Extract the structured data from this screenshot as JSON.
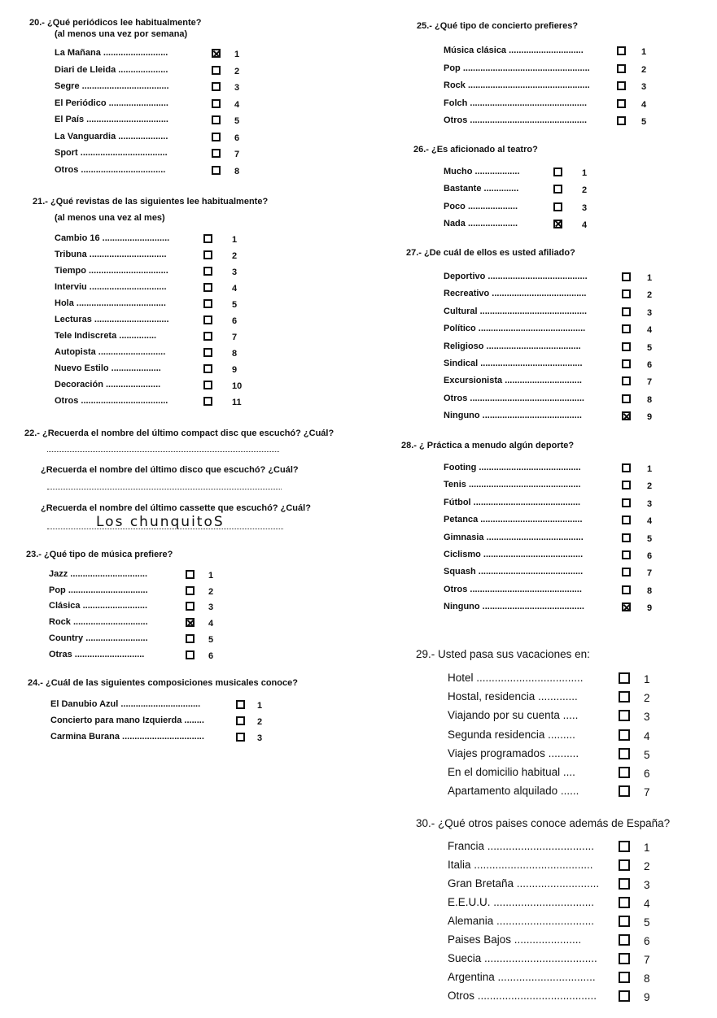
{
  "questions": [
    {
      "id": "q20",
      "title": "20.- ¿Qué periódicos lee habitualmente?",
      "subtitle": "(al menos una vez por semana)",
      "options": [
        {
          "label": "La Mañana ..........................",
          "num": "1",
          "checked": true
        },
        {
          "label": "Diari de Lleida ....................",
          "num": "2"
        },
        {
          "label": "Segre ...................................",
          "num": "3"
        },
        {
          "label": "El Periódico ........................",
          "num": "4"
        },
        {
          "label": "El País .................................",
          "num": "5"
        },
        {
          "label": "La Vanguardia ....................",
          "num": "6"
        },
        {
          "label": "Sport ...................................",
          "num": "7"
        },
        {
          "label": "Otros ..................................",
          "num": "8"
        }
      ]
    },
    {
      "id": "q21",
      "title": "21.- ¿Qué revistas de las siguientes lee habitualmente?",
      "subtitle": "(al menos una vez al mes)",
      "options": [
        {
          "label": "Cambio 16 ...........................",
          "num": "1"
        },
        {
          "label": "Tribuna ...............................",
          "num": "2"
        },
        {
          "label": "Tiempo ................................",
          "num": "3"
        },
        {
          "label": "Interviu ...............................",
          "num": "4"
        },
        {
          "label": "Hola ....................................",
          "num": "5"
        },
        {
          "label": "Lecturas ..............................",
          "num": "6"
        },
        {
          "label": "Tele Indiscreta ...............",
          "num": "7"
        },
        {
          "label": "Autopista ...........................",
          "num": "8"
        },
        {
          "label": "Nuevo Estilo ....................",
          "num": "9"
        },
        {
          "label": "Decoración ......................",
          "num": "10"
        },
        {
          "label": "Otros ...................................",
          "num": "11"
        }
      ]
    },
    {
      "id": "q23",
      "title": "23.- ¿Qué tipo de música prefiere?",
      "options": [
        {
          "label": "Jazz ...............................",
          "num": "1"
        },
        {
          "label": "Pop ................................",
          "num": "2"
        },
        {
          "label": "Clásica ..........................",
          "num": "3"
        },
        {
          "label": "Rock ..............................",
          "num": "4",
          "checked": true
        },
        {
          "label": "Country .........................",
          "num": "5"
        },
        {
          "label": "Otras ............................",
          "num": "6"
        }
      ]
    },
    {
      "id": "q24",
      "title": "24.- ¿Cuál de las siguientes composiciones musicales conoce?",
      "options": [
        {
          "label": "El Danubio Azul ................................",
          "num": "1"
        },
        {
          "label": "Concierto para mano Izquierda ........",
          "num": "2"
        },
        {
          "label": "Carmina Burana .................................",
          "num": "3"
        }
      ]
    },
    {
      "id": "q25",
      "title": "25.- ¿Qué tipo de concierto prefieres?",
      "options": [
        {
          "label": "Música clásica ..............................",
          "num": "1"
        },
        {
          "label": "Pop ...................................................",
          "num": "2"
        },
        {
          "label": "Rock .................................................",
          "num": "3"
        },
        {
          "label": "Folch ...............................................",
          "num": "4"
        },
        {
          "label": "Otros ...............................................",
          "num": "5"
        }
      ]
    },
    {
      "id": "q26",
      "title": "26.- ¿Es aficionado al teatro?",
      "options": [
        {
          "label": "Mucho ..................",
          "num": "1"
        },
        {
          "label": "Bastante ..............",
          "num": "2"
        },
        {
          "label": "Poco ....................",
          "num": "3"
        },
        {
          "label": "Nada ....................",
          "num": "4",
          "checked": true
        }
      ]
    },
    {
      "id": "q27",
      "title": "27.- ¿De cuál de ellos es usted afiliado?",
      "options": [
        {
          "label": "Deportivo ........................................",
          "num": "1"
        },
        {
          "label": "Recreativo ......................................",
          "num": "2"
        },
        {
          "label": "Cultural ...........................................",
          "num": "3"
        },
        {
          "label": "Político ...........................................",
          "num": "4"
        },
        {
          "label": "Religioso ......................................",
          "num": "5"
        },
        {
          "label": "Sindical .........................................",
          "num": "6"
        },
        {
          "label": "Excursionista ...............................",
          "num": "7"
        },
        {
          "label": "Otros ..............................................",
          "num": "8"
        },
        {
          "label": "Ninguno ........................................",
          "num": "9",
          "checked": true
        }
      ]
    },
    {
      "id": "q28",
      "title": "28.- ¿ Práctica a menudo algún deporte?",
      "options": [
        {
          "label": "Footing .........................................",
          "num": "1"
        },
        {
          "label": "Tenis .............................................",
          "num": "2"
        },
        {
          "label": "Fútbol ...........................................",
          "num": "3"
        },
        {
          "label": "Petanca .........................................",
          "num": "4"
        },
        {
          "label": "Gimnasia .......................................",
          "num": "5"
        },
        {
          "label": "Ciclismo ........................................",
          "num": "6"
        },
        {
          "label": "Squash ..........................................",
          "num": "7"
        },
        {
          "label": "Otros .............................................",
          "num": "8"
        },
        {
          "label": "Ninguno .........................................",
          "num": "9",
          "checked": true
        }
      ]
    },
    {
      "id": "q29",
      "title": "29.- Usted pasa sus vacaciones en:",
      "options": [
        {
          "label": "Hotel ...................................",
          "num": "1"
        },
        {
          "label": "Hostal, residencia .............",
          "num": "2"
        },
        {
          "label": "Viajando por su cuenta .....",
          "num": "3"
        },
        {
          "label": "Segunda residencia .........",
          "num": "4"
        },
        {
          "label": "Viajes programados ..........",
          "num": "5"
        },
        {
          "label": "En el domicilio habitual ....",
          "num": "6"
        },
        {
          "label": "Apartamento alquilado ......",
          "num": "7"
        }
      ]
    },
    {
      "id": "q30",
      "title": "30.- ¿Qué otros paises conoce además de España?",
      "options": [
        {
          "label": "Francia ...................................",
          "num": "1"
        },
        {
          "label": "Italia .......................................",
          "num": "2"
        },
        {
          "label": "Gran Bretaña ...........................",
          "num": "3"
        },
        {
          "label": "E.E.U.U. .................................",
          "num": "4"
        },
        {
          "label": "Alemania ................................",
          "num": "5"
        },
        {
          "label": "Paises Bajos ......................",
          "num": "6"
        },
        {
          "label": "Suecia .....................................",
          "num": "7"
        },
        {
          "label": "Argentina ................................",
          "num": "8"
        },
        {
          "label": "Otros .......................................",
          "num": "9"
        }
      ]
    }
  ],
  "q22": {
    "title": "22.- ¿Recuerda el nombre del último compact disc que escuchó? ¿Cuál?",
    "disco": "¿Recuerda el nombre del último disco que escuchó? ¿Cuál?",
    "cassette": "¿Recuerda el nombre del último cassette que escuchó? ¿Cuál?",
    "cassette_answer": "Los chunquitoS"
  }
}
